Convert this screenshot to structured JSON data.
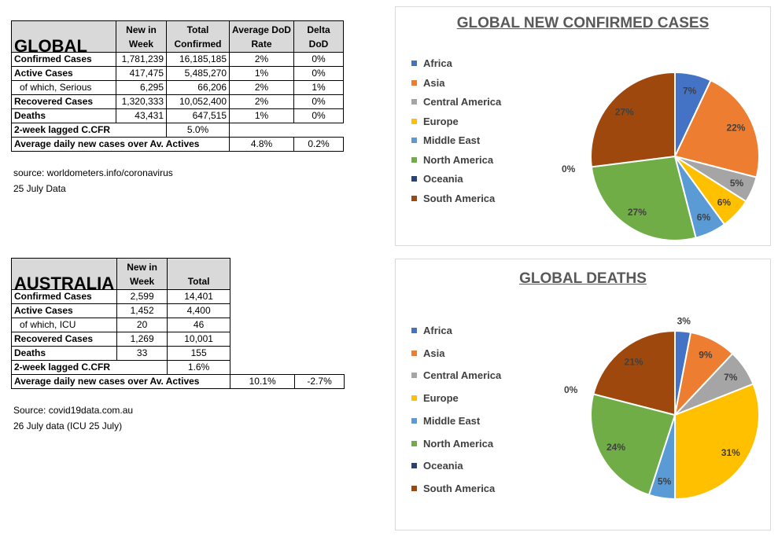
{
  "global_table": {
    "title": "GLOBAL",
    "headers": [
      "New in Week",
      "Total Confirmed",
      "Average DoD  Rate",
      "Delta DoD"
    ],
    "rows": [
      {
        "label": "Confirmed Cases",
        "indent": false,
        "cells": [
          "1,781,239",
          "16,185,185",
          "2%",
          "0%"
        ]
      },
      {
        "label": "Active Cases",
        "indent": false,
        "cells": [
          "417,475",
          "5,485,270",
          "1%",
          "0%"
        ]
      },
      {
        "label": "of which, Serious",
        "indent": true,
        "cells": [
          "6,295",
          "66,206",
          "2%",
          "1%"
        ]
      },
      {
        "label": "Recovered Cases",
        "indent": false,
        "cells": [
          "1,320,333",
          "10,052,400",
          "2%",
          "0%"
        ]
      },
      {
        "label": "Deaths",
        "indent": false,
        "cells": [
          "43,431",
          "647,515",
          "1%",
          "0%"
        ]
      }
    ],
    "cfr_label": "2-week lagged C.CFR",
    "cfr_value": "5.0%",
    "avg_label": "Average daily new cases over Av. Actives",
    "avg_value": "4.8%",
    "avg_delta": "0.2%",
    "source": "source: worldometers.info/coronavirus",
    "date_note": "25 July Data"
  },
  "australia_table": {
    "title": "AUSTRALIA",
    "headers": [
      "New in Week",
      "Total"
    ],
    "rows": [
      {
        "label": "Confirmed Cases",
        "indent": false,
        "cells": [
          "2,599",
          "14,401"
        ]
      },
      {
        "label": "Active Cases",
        "indent": false,
        "cells": [
          "1,452",
          "4,400"
        ]
      },
      {
        "label": "of which, ICU",
        "indent": true,
        "cells": [
          "20",
          "46"
        ]
      },
      {
        "label": "Recovered Cases",
        "indent": false,
        "cells": [
          "1,269",
          "10,001"
        ]
      },
      {
        "label": "Deaths",
        "indent": false,
        "cells": [
          "33",
          "155"
        ]
      }
    ],
    "cfr_label": "2-week lagged C.CFR",
    "cfr_value": "1.6%",
    "avg_label": "Average daily new cases over Av. Actives",
    "avg_value": "10.1%",
    "avg_delta": "-2.7%",
    "source": "Source: covid19data.com.au",
    "date_note": "26 July data (ICU 25 July)"
  },
  "chart_data": [
    {
      "type": "pie",
      "title": "GLOBAL NEW CONFIRMED CASES",
      "legend_position": "left",
      "categories": [
        "Africa",
        "Asia",
        "Central America",
        "Europe",
        "Middle East",
        "North America",
        "Oceania",
        "South America"
      ],
      "values": [
        7,
        22,
        5,
        6,
        6,
        27,
        0,
        27
      ],
      "data_labels": [
        "7%",
        "22%",
        "5%",
        "6%",
        "6%",
        "27%",
        "0%",
        "27%"
      ],
      "colors": [
        "#4472c4",
        "#ed7d31",
        "#a5a5a5",
        "#ffc000",
        "#5b9bd5",
        "#70ad47",
        "#264478",
        "#9e480e"
      ]
    },
    {
      "type": "pie",
      "title": "GLOBAL DEATHS",
      "legend_position": "left",
      "categories": [
        "Africa",
        "Asia",
        "Central America",
        "Europe",
        "Middle East",
        "North America",
        "Oceania",
        "South America"
      ],
      "values": [
        3,
        9,
        7,
        31,
        5,
        24,
        0,
        21
      ],
      "data_labels": [
        "3%",
        "9%",
        "7%",
        "31%",
        "5%",
        "24%",
        "0%",
        "21%"
      ],
      "colors": [
        "#4472c4",
        "#ed7d31",
        "#a5a5a5",
        "#ffc000",
        "#5b9bd5",
        "#70ad47",
        "#264478",
        "#9e480e"
      ]
    }
  ]
}
